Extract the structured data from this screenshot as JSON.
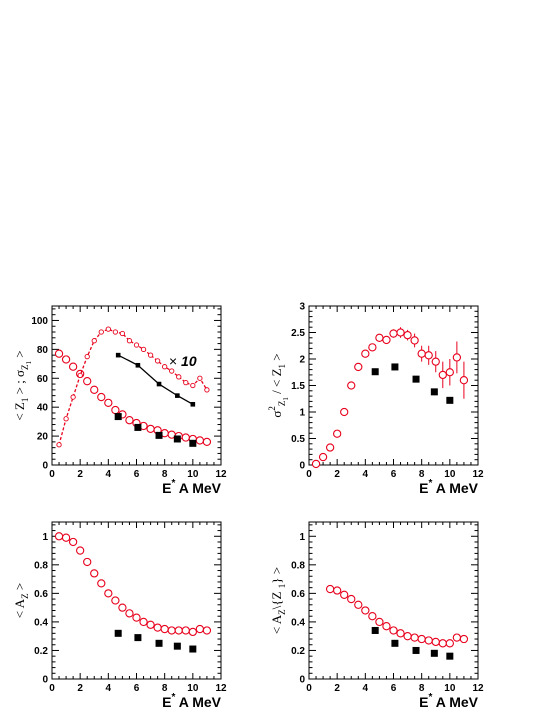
{
  "chart_data": [
    {
      "id": "z1",
      "type": "scatter",
      "title": "",
      "xlabel": {
        "main": "E",
        "sup": "*",
        "rest": " A MeV"
      },
      "ylabel": "< Z1 > ; σZ1",
      "ylabel_parts": {
        "a": "< Z",
        "a_sub": "1",
        "b": " > ; σ",
        "b_sub": "Z",
        "b_subsub": "1"
      },
      "xlim": [
        0,
        12
      ],
      "ylim": [
        0,
        110
      ],
      "xticks": [
        0,
        2,
        4,
        6,
        8,
        10,
        12
      ],
      "yticks": [
        0,
        20,
        40,
        60,
        80,
        100
      ],
      "grid": false,
      "legend": "none",
      "annotation": {
        "prefix": "×",
        "text": "10",
        "x": 9.3,
        "y": 72
      },
      "series": [
        {
          "marker": "open-circle",
          "color": "#e8001c",
          "x": [
            0.5,
            1.0,
            1.5,
            2.0,
            2.5,
            3.0,
            3.5,
            4.0,
            4.5,
            5.0,
            5.5,
            6.0,
            6.5,
            7.0,
            7.5,
            8.0,
            8.5,
            9.0,
            9.5,
            10.0,
            10.5,
            11.0
          ],
          "y": [
            77,
            73,
            68,
            63,
            58,
            52,
            47,
            43,
            38,
            35,
            31,
            29,
            27,
            25,
            24,
            22,
            21,
            20,
            19,
            18,
            17,
            16
          ]
        },
        {
          "marker": "filled-square",
          "color": "#000000",
          "x": [
            4.7,
            6.1,
            7.6,
            8.9,
            10.0
          ],
          "y": [
            33.5,
            26,
            20.5,
            18,
            15
          ]
        },
        {
          "marker": "small-circle-dashed-line",
          "color": "#e8001c",
          "x": [
            0.5,
            1.0,
            1.5,
            2.0,
            2.5,
            3.0,
            3.5,
            4.0,
            4.5,
            5.0,
            5.5,
            6.0,
            6.5,
            7.0,
            7.5,
            8.0,
            8.5,
            9.0,
            9.5,
            10.0,
            10.5,
            11.0
          ],
          "y": [
            14,
            32,
            47,
            62,
            75,
            86,
            92,
            94,
            92,
            91,
            86,
            83,
            80,
            76,
            72,
            68,
            65,
            61,
            57,
            55,
            60,
            52
          ]
        },
        {
          "marker": "small-square-solid-line",
          "color": "#000000",
          "x": [
            4.7,
            6.1,
            7.6,
            8.9,
            10.0
          ],
          "y": [
            76,
            69,
            56,
            48,
            42
          ]
        }
      ]
    },
    {
      "id": "variance",
      "type": "scatter",
      "title": "",
      "xlabel": {
        "main": "E",
        "sup": "*",
        "rest": " A MeV"
      },
      "ylabel": "σ2Z1 / < Z1 >",
      "ylabel_parts": {
        "a": "σ",
        "a_sup": "2",
        "a_sub": "Z",
        "a_subsub": "1",
        "b": " / < Z",
        "b_sub": "1",
        "c": " >"
      },
      "xlim": [
        0,
        12
      ],
      "ylim": [
        0,
        3
      ],
      "xticks": [
        0,
        2,
        4,
        6,
        8,
        10,
        12
      ],
      "yticks": [
        0,
        0.5,
        1,
        1.5,
        2,
        2.5,
        3
      ],
      "ytick_labels": [
        "0",
        "0.5",
        "1",
        "1.5",
        "2",
        "2.5",
        "3"
      ],
      "grid": false,
      "legend": "none",
      "series": [
        {
          "marker": "open-circle",
          "color": "#e8001c",
          "x": [
            0.5,
            1.0,
            1.5,
            2.0,
            2.5,
            3.0,
            3.5,
            4.0,
            4.5,
            5.0,
            5.5,
            6.0,
            6.5,
            7.0,
            7.5,
            8.0,
            8.5,
            9.0,
            9.5,
            10.0,
            10.5,
            11.0
          ],
          "y": [
            0.02,
            0.15,
            0.33,
            0.59,
            1.0,
            1.5,
            1.85,
            2.1,
            2.22,
            2.4,
            2.36,
            2.48,
            2.5,
            2.45,
            2.35,
            2.1,
            2.07,
            1.95,
            1.7,
            1.75,
            2.03,
            1.6
          ],
          "err": [
            0,
            0,
            0,
            0,
            0,
            0,
            0,
            0,
            0,
            0,
            0.06,
            0.08,
            0.1,
            0.1,
            0.13,
            0.15,
            0.18,
            0.2,
            0.25,
            0.25,
            0.3,
            0.35
          ]
        },
        {
          "marker": "filled-square",
          "color": "#000000",
          "x": [
            4.7,
            6.1,
            7.6,
            8.9,
            10.0
          ],
          "y": [
            1.76,
            1.85,
            1.62,
            1.38,
            1.22
          ]
        }
      ]
    },
    {
      "id": "az",
      "type": "scatter",
      "title": "",
      "xlabel": {
        "main": "E",
        "sup": "*",
        "rest": " A MeV"
      },
      "ylabel": "< AZ >",
      "ylabel_parts": {
        "a": "< A",
        "a_sub": "Z",
        "b": " >"
      },
      "xlim": [
        0,
        12
      ],
      "ylim": [
        0,
        1.1
      ],
      "xticks": [
        0,
        2,
        4,
        6,
        8,
        10,
        12
      ],
      "yticks": [
        0,
        0.2,
        0.4,
        0.6,
        0.8,
        1
      ],
      "ytick_labels": [
        "0",
        "0.2",
        "0.4",
        "0.6",
        "0.8",
        "1"
      ],
      "grid": false,
      "legend": "none",
      "series": [
        {
          "marker": "open-circle",
          "color": "#e8001c",
          "x": [
            0.5,
            1.0,
            1.5,
            2.0,
            2.5,
            3.0,
            3.5,
            4.0,
            4.5,
            5.0,
            5.5,
            6.0,
            6.5,
            7.0,
            7.5,
            8.0,
            8.5,
            9.0,
            9.5,
            10.0,
            10.5,
            11.0
          ],
          "y": [
            1.0,
            0.99,
            0.96,
            0.9,
            0.82,
            0.74,
            0.67,
            0.6,
            0.55,
            0.5,
            0.46,
            0.43,
            0.4,
            0.38,
            0.36,
            0.35,
            0.34,
            0.34,
            0.34,
            0.33,
            0.35,
            0.34
          ]
        },
        {
          "marker": "filled-square",
          "color": "#000000",
          "x": [
            4.7,
            6.1,
            7.6,
            8.9,
            10.0
          ],
          "y": [
            0.32,
            0.29,
            0.25,
            0.23,
            0.21
          ]
        }
      ]
    },
    {
      "id": "az-norm",
      "type": "scatter",
      "title": "",
      "xlabel": {
        "main": "E",
        "sup": "*",
        "rest": " A MeV"
      },
      "ylabel": "< AZ\\{Z 1} >",
      "ylabel_parts": {
        "a": "< A",
        "a_sub": "Z",
        "b": "\\{Z ",
        "b_sub": "1",
        "c": "} >"
      },
      "xlim": [
        0,
        12
      ],
      "ylim": [
        0,
        1.1
      ],
      "xticks": [
        0,
        2,
        4,
        6,
        8,
        10,
        12
      ],
      "yticks": [
        0,
        0.2,
        0.4,
        0.6,
        0.8,
        1
      ],
      "ytick_labels": [
        "0",
        "0.2",
        "0.4",
        "0.6",
        "0.8",
        "1"
      ],
      "grid": false,
      "legend": "none",
      "series": [
        {
          "marker": "open-circle",
          "color": "#e8001c",
          "x": [
            1.5,
            2.0,
            2.5,
            3.0,
            3.5,
            4.0,
            4.5,
            5.0,
            5.5,
            6.0,
            6.5,
            7.0,
            7.5,
            8.0,
            8.5,
            9.0,
            9.5,
            10.0,
            10.5,
            11.0
          ],
          "y": [
            0.63,
            0.62,
            0.59,
            0.56,
            0.52,
            0.48,
            0.44,
            0.4,
            0.37,
            0.34,
            0.32,
            0.3,
            0.29,
            0.28,
            0.27,
            0.26,
            0.25,
            0.25,
            0.29,
            0.28
          ]
        },
        {
          "marker": "filled-square",
          "color": "#000000",
          "x": [
            4.7,
            6.1,
            7.6,
            8.9,
            10.0
          ],
          "y": [
            0.34,
            0.25,
            0.2,
            0.18,
            0.16
          ]
        }
      ]
    }
  ]
}
